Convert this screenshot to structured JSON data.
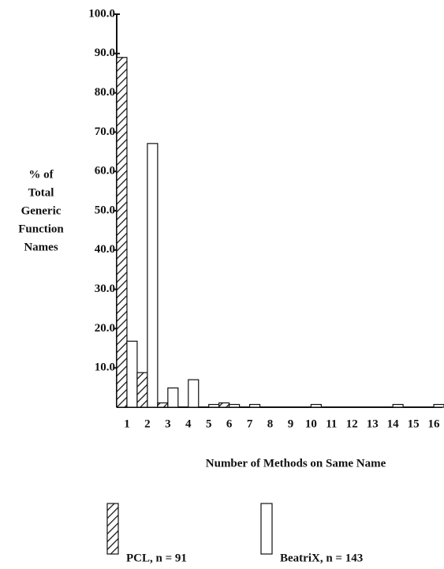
{
  "chart_data": {
    "type": "bar",
    "y_label": [
      "% of",
      "Total",
      "Generic",
      "Function",
      "Names"
    ],
    "x_label": "Number of Methods on Same Name",
    "categories": [
      "1",
      "2",
      "3",
      "4",
      "5",
      "6",
      "7",
      "8",
      "9",
      "10",
      "11",
      "12",
      "13",
      "14",
      "15",
      "16"
    ],
    "series": [
      {
        "name": "PCL, n = 91",
        "color": "hatch",
        "values": [
          89.0,
          8.8,
          1.1,
          0,
          0,
          1.1,
          0,
          0,
          0,
          0,
          0,
          0,
          0,
          0,
          0,
          0
        ]
      },
      {
        "name": "BeatriX, n = 143",
        "color": "#ffffff",
        "values": [
          16.8,
          67.1,
          4.9,
          7.0,
          0.7,
          0.7,
          0.7,
          0,
          0,
          0.7,
          0,
          0,
          0,
          0.7,
          0,
          0.7
        ]
      }
    ],
    "ylim": [
      0,
      100
    ],
    "yticks": [
      {
        "value": 10,
        "label": "10.0"
      },
      {
        "value": 20,
        "label": "20.0"
      },
      {
        "value": 30,
        "label": "30.0"
      },
      {
        "value": 40,
        "label": "40.0"
      },
      {
        "value": 50,
        "label": "50.0"
      },
      {
        "value": 60,
        "label": "60.0"
      },
      {
        "value": 70,
        "label": "70.0"
      },
      {
        "value": 80,
        "label": "80.0"
      },
      {
        "value": 90,
        "label": "90.0"
      },
      {
        "value": 100,
        "label": "100.0"
      }
    ]
  }
}
